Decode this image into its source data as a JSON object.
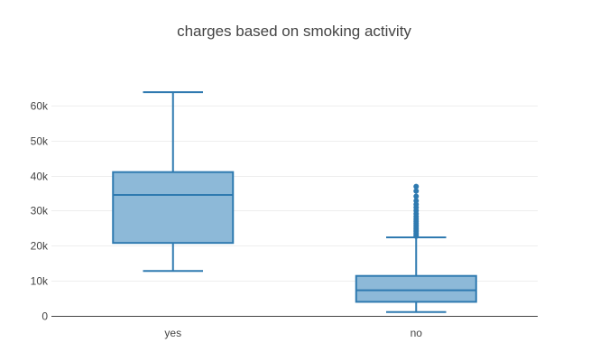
{
  "chart_data": {
    "type": "box",
    "title": "charges based on smoking activity",
    "xlabel": "",
    "ylabel": "",
    "categories": [
      "yes",
      "no"
    ],
    "ylim": [
      0,
      70000
    ],
    "yticks": [
      0,
      10000,
      20000,
      30000,
      40000,
      50000,
      60000
    ],
    "ytick_labels": [
      "0",
      "10k",
      "20k",
      "30k",
      "40k",
      "50k",
      "60k"
    ],
    "grid": true,
    "boxes": [
      {
        "category": "yes",
        "min": 12800,
        "q1": 20800,
        "median": 34500,
        "q3": 41000,
        "max": 63800,
        "outliers": []
      },
      {
        "category": "no",
        "min": 1100,
        "q1": 4000,
        "median": 7300,
        "q3": 11400,
        "max": 22400,
        "outliers": [
          22700,
          23100,
          23500,
          24000,
          24400,
          24900,
          25400,
          25900,
          26400,
          27000,
          27600,
          28300,
          29100,
          30000,
          30900,
          31800,
          32800,
          34100,
          35600,
          36900
        ]
      }
    ],
    "colors": {
      "box_fill": "#8db9d8",
      "box_line": "#2f7ab0"
    }
  }
}
